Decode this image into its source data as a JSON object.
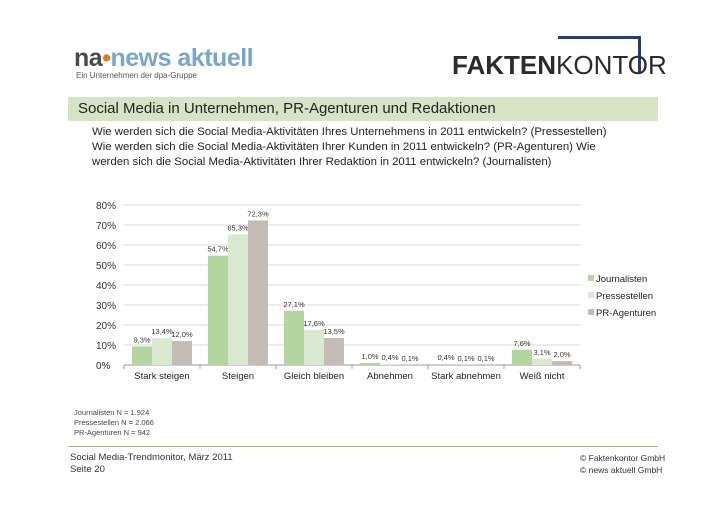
{
  "logos": {
    "left_main": "na",
    "left_dot": "•",
    "left_brand": "news aktuell",
    "left_sub": "Ein Unternehmen der dpa-Gruppe",
    "right_part1": "FAKTEN",
    "right_part2": "KONTOR"
  },
  "slide": {
    "title": "Social Media in Unternehmen, PR-Agenturen und Redaktionen",
    "question_lines": [
      "Wie werden sich die Social Media-Aktivitäten Ihres Unternehmens in 2011 entwickeln? (Pressestellen)",
      "Wie werden sich die Social Media-Aktivitäten Ihrer Kunden in 2011 entwickeln? (PR-Agenturen) Wie",
      "werden sich die Social Media-Aktivitäten Ihrer Redaktion in 2011 entwickeln?  (Journalisten)"
    ],
    "notes": [
      "Journalisten N = 1.924",
      "Pressestellen N = 2.066",
      "PR-Agenturen N = 942"
    ],
    "footer_left": [
      "Social Media-Trendmonitor, März 2011",
      "Seite 20"
    ],
    "footer_right": [
      "© Faktenkontor GmbH",
      "© news aktuell GmbH"
    ]
  },
  "colors": {
    "journalisten": "#b5d5a0",
    "pressestellen": "#d9e8d1",
    "pr_agenturen": "#c5bdb5",
    "title_band": "#d6e4c5",
    "grid": "#d9d9d9"
  },
  "chart_data": {
    "type": "bar",
    "categories": [
      "Stark steigen",
      "Steigen",
      "Gleich bleiben",
      "Abnehmen",
      "Stark abnehmen",
      "Weiß nicht"
    ],
    "series": [
      {
        "name": "Journalisten",
        "values": [
          9.3,
          54.7,
          27.1,
          1.0,
          0.4,
          7.6
        ],
        "labels": [
          "9,3%",
          "54,7%",
          "27,1%",
          "1,0%",
          "0,4%",
          "7,6%"
        ]
      },
      {
        "name": "Pressestellen",
        "values": [
          13.4,
          65.3,
          17.6,
          0.4,
          0.1,
          3.1
        ],
        "labels": [
          "13,4%",
          "65,3%",
          "17,6%",
          "0,4%",
          "0,1%",
          "3,1%"
        ]
      },
      {
        "name": "PR-Agenturen",
        "values": [
          12.0,
          72.3,
          13.5,
          0.1,
          0.1,
          2.0
        ],
        "labels": [
          "12,0%",
          "72,3%",
          "13,5%",
          "0,1%",
          "0,1%",
          "2,0%"
        ]
      }
    ],
    "y_ticks": [
      "0%",
      "10%",
      "20%",
      "30%",
      "40%",
      "50%",
      "60%",
      "70%",
      "80%"
    ],
    "ylim": [
      0,
      80
    ],
    "grid": true,
    "legend_position": "right",
    "title": "",
    "xlabel": "",
    "ylabel": ""
  }
}
